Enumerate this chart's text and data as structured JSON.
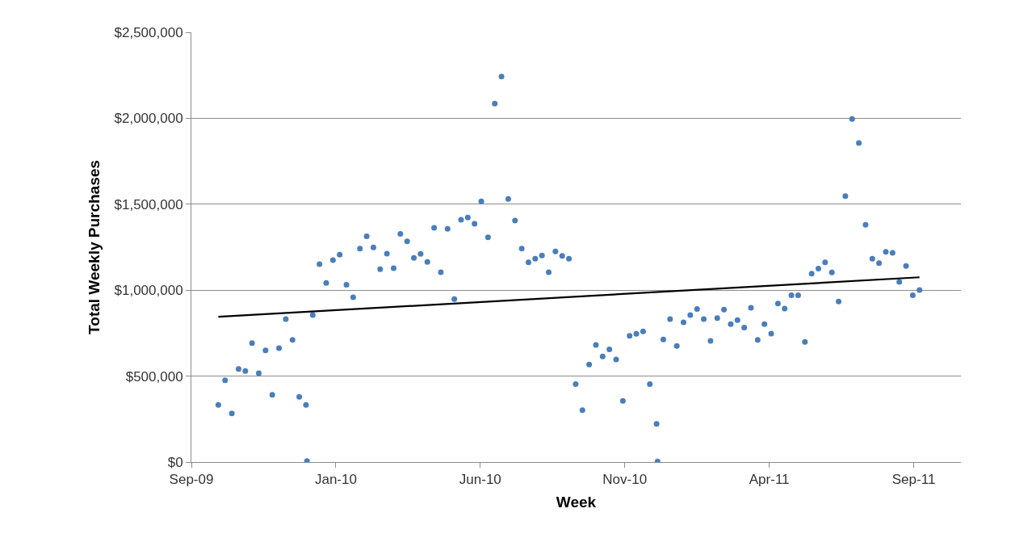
{
  "chart_data": {
    "type": "scatter",
    "xlabel": "Week",
    "ylabel": "Total Weekly Purchases",
    "grid": "y",
    "xlim": [
      "2009-09-01",
      "2011-11-09"
    ],
    "xticks": [
      {
        "value": "2009-09-01",
        "label": "Sep-09"
      },
      {
        "value": "2010-01-29",
        "label": "Jan-10"
      },
      {
        "value": "2010-06-28",
        "label": "Jun-10"
      },
      {
        "value": "2010-11-25",
        "label": "Nov-10"
      },
      {
        "value": "2011-04-24",
        "label": "Apr-11"
      },
      {
        "value": "2011-09-21",
        "label": "Sep-11"
      }
    ],
    "ylim": [
      0,
      2500000
    ],
    "yticks": [
      {
        "value": 0,
        "label": "$0"
      },
      {
        "value": 500000,
        "label": "$500,000"
      },
      {
        "value": 1000000,
        "label": "$1,000,000"
      },
      {
        "value": 1500000,
        "label": "$1,500,000"
      },
      {
        "value": 2000000,
        "label": "$2,000,000"
      },
      {
        "value": 2500000,
        "label": "$2,500,000"
      }
    ],
    "series": [
      {
        "marker": "circle",
        "color": "#4a7ebb",
        "x": [
          "2009-09-29",
          "2009-10-06",
          "2009-10-13",
          "2009-10-20",
          "2009-10-27",
          "2009-11-03",
          "2009-11-10",
          "2009-11-17",
          "2009-11-24",
          "2009-12-01",
          "2009-12-08",
          "2009-12-15",
          "2009-12-22",
          "2009-12-29",
          "2009-12-30",
          "2010-01-05",
          "2010-01-12",
          "2010-01-19",
          "2010-01-26",
          "2010-02-02",
          "2010-02-09",
          "2010-02-16",
          "2010-02-23",
          "2010-03-02",
          "2010-03-09",
          "2010-03-16",
          "2010-03-23",
          "2010-03-30",
          "2010-04-06",
          "2010-04-13",
          "2010-04-20",
          "2010-04-27",
          "2010-05-04",
          "2010-05-11",
          "2010-05-18",
          "2010-05-25",
          "2010-06-01",
          "2010-06-08",
          "2010-06-15",
          "2010-06-22",
          "2010-06-29",
          "2010-07-06",
          "2010-07-13",
          "2010-07-20",
          "2010-07-27",
          "2010-08-03",
          "2010-08-10",
          "2010-08-17",
          "2010-08-24",
          "2010-08-31",
          "2010-09-07",
          "2010-09-14",
          "2010-09-21",
          "2010-09-28",
          "2010-10-05",
          "2010-10-12",
          "2010-10-19",
          "2010-10-26",
          "2010-11-02",
          "2010-11-09",
          "2010-11-16",
          "2010-11-23",
          "2010-11-30",
          "2010-12-07",
          "2010-12-14",
          "2010-12-21",
          "2010-12-28",
          "2010-12-29",
          "2011-01-04",
          "2011-01-11",
          "2011-01-18",
          "2011-01-25",
          "2011-02-01",
          "2011-02-08",
          "2011-02-15",
          "2011-02-22",
          "2011-03-01",
          "2011-03-08",
          "2011-03-15",
          "2011-03-22",
          "2011-03-29",
          "2011-04-05",
          "2011-04-12",
          "2011-04-19",
          "2011-04-26",
          "2011-05-03",
          "2011-05-10",
          "2011-05-17",
          "2011-05-24",
          "2011-05-31",
          "2011-06-07",
          "2011-06-14",
          "2011-06-21",
          "2011-06-28",
          "2011-07-05",
          "2011-07-12",
          "2011-07-19",
          "2011-07-26",
          "2011-08-02",
          "2011-08-09",
          "2011-08-16",
          "2011-08-23",
          "2011-08-30",
          "2011-09-06",
          "2011-09-13",
          "2011-09-20",
          "2011-09-27"
        ],
        "values": [
          332000,
          476000,
          283000,
          542000,
          530000,
          692000,
          517000,
          650000,
          391000,
          663000,
          832000,
          711000,
          379000,
          332000,
          6000,
          855000,
          1151000,
          1042000,
          1175000,
          1206000,
          1031000,
          959000,
          1242000,
          1314000,
          1249000,
          1122000,
          1212000,
          1128000,
          1327000,
          1284000,
          1188000,
          1211000,
          1164000,
          1363000,
          1104000,
          1357000,
          948000,
          1410000,
          1423000,
          1386000,
          1517000,
          1308000,
          2085000,
          2243000,
          1531000,
          1405000,
          1242000,
          1162000,
          1183000,
          1202000,
          1104000,
          1225000,
          1200000,
          1183000,
          453000,
          302000,
          567000,
          681000,
          614000,
          656000,
          597000,
          356000,
          734000,
          746000,
          760000,
          453000,
          222000,
          3000,
          713000,
          832000,
          675000,
          813000,
          855000,
          891000,
          832000,
          705000,
          838000,
          887000,
          802000,
          826000,
          783000,
          898000,
          711000,
          802000,
          747000,
          922000,
          893000,
          970000,
          970000,
          699000,
          1096000,
          1126000,
          1162000,
          1103000,
          934000,
          1547000,
          1996000,
          1856000,
          1380000,
          1183000,
          1157000,
          1223000,
          1217000,
          1048000,
          1141000,
          970000,
          1001000
        ]
      },
      {
        "type": "line",
        "color": "#000000",
        "x": [
          "2009-09-29",
          "2011-09-27"
        ],
        "values": [
          845000,
          1075000
        ]
      }
    ]
  }
}
